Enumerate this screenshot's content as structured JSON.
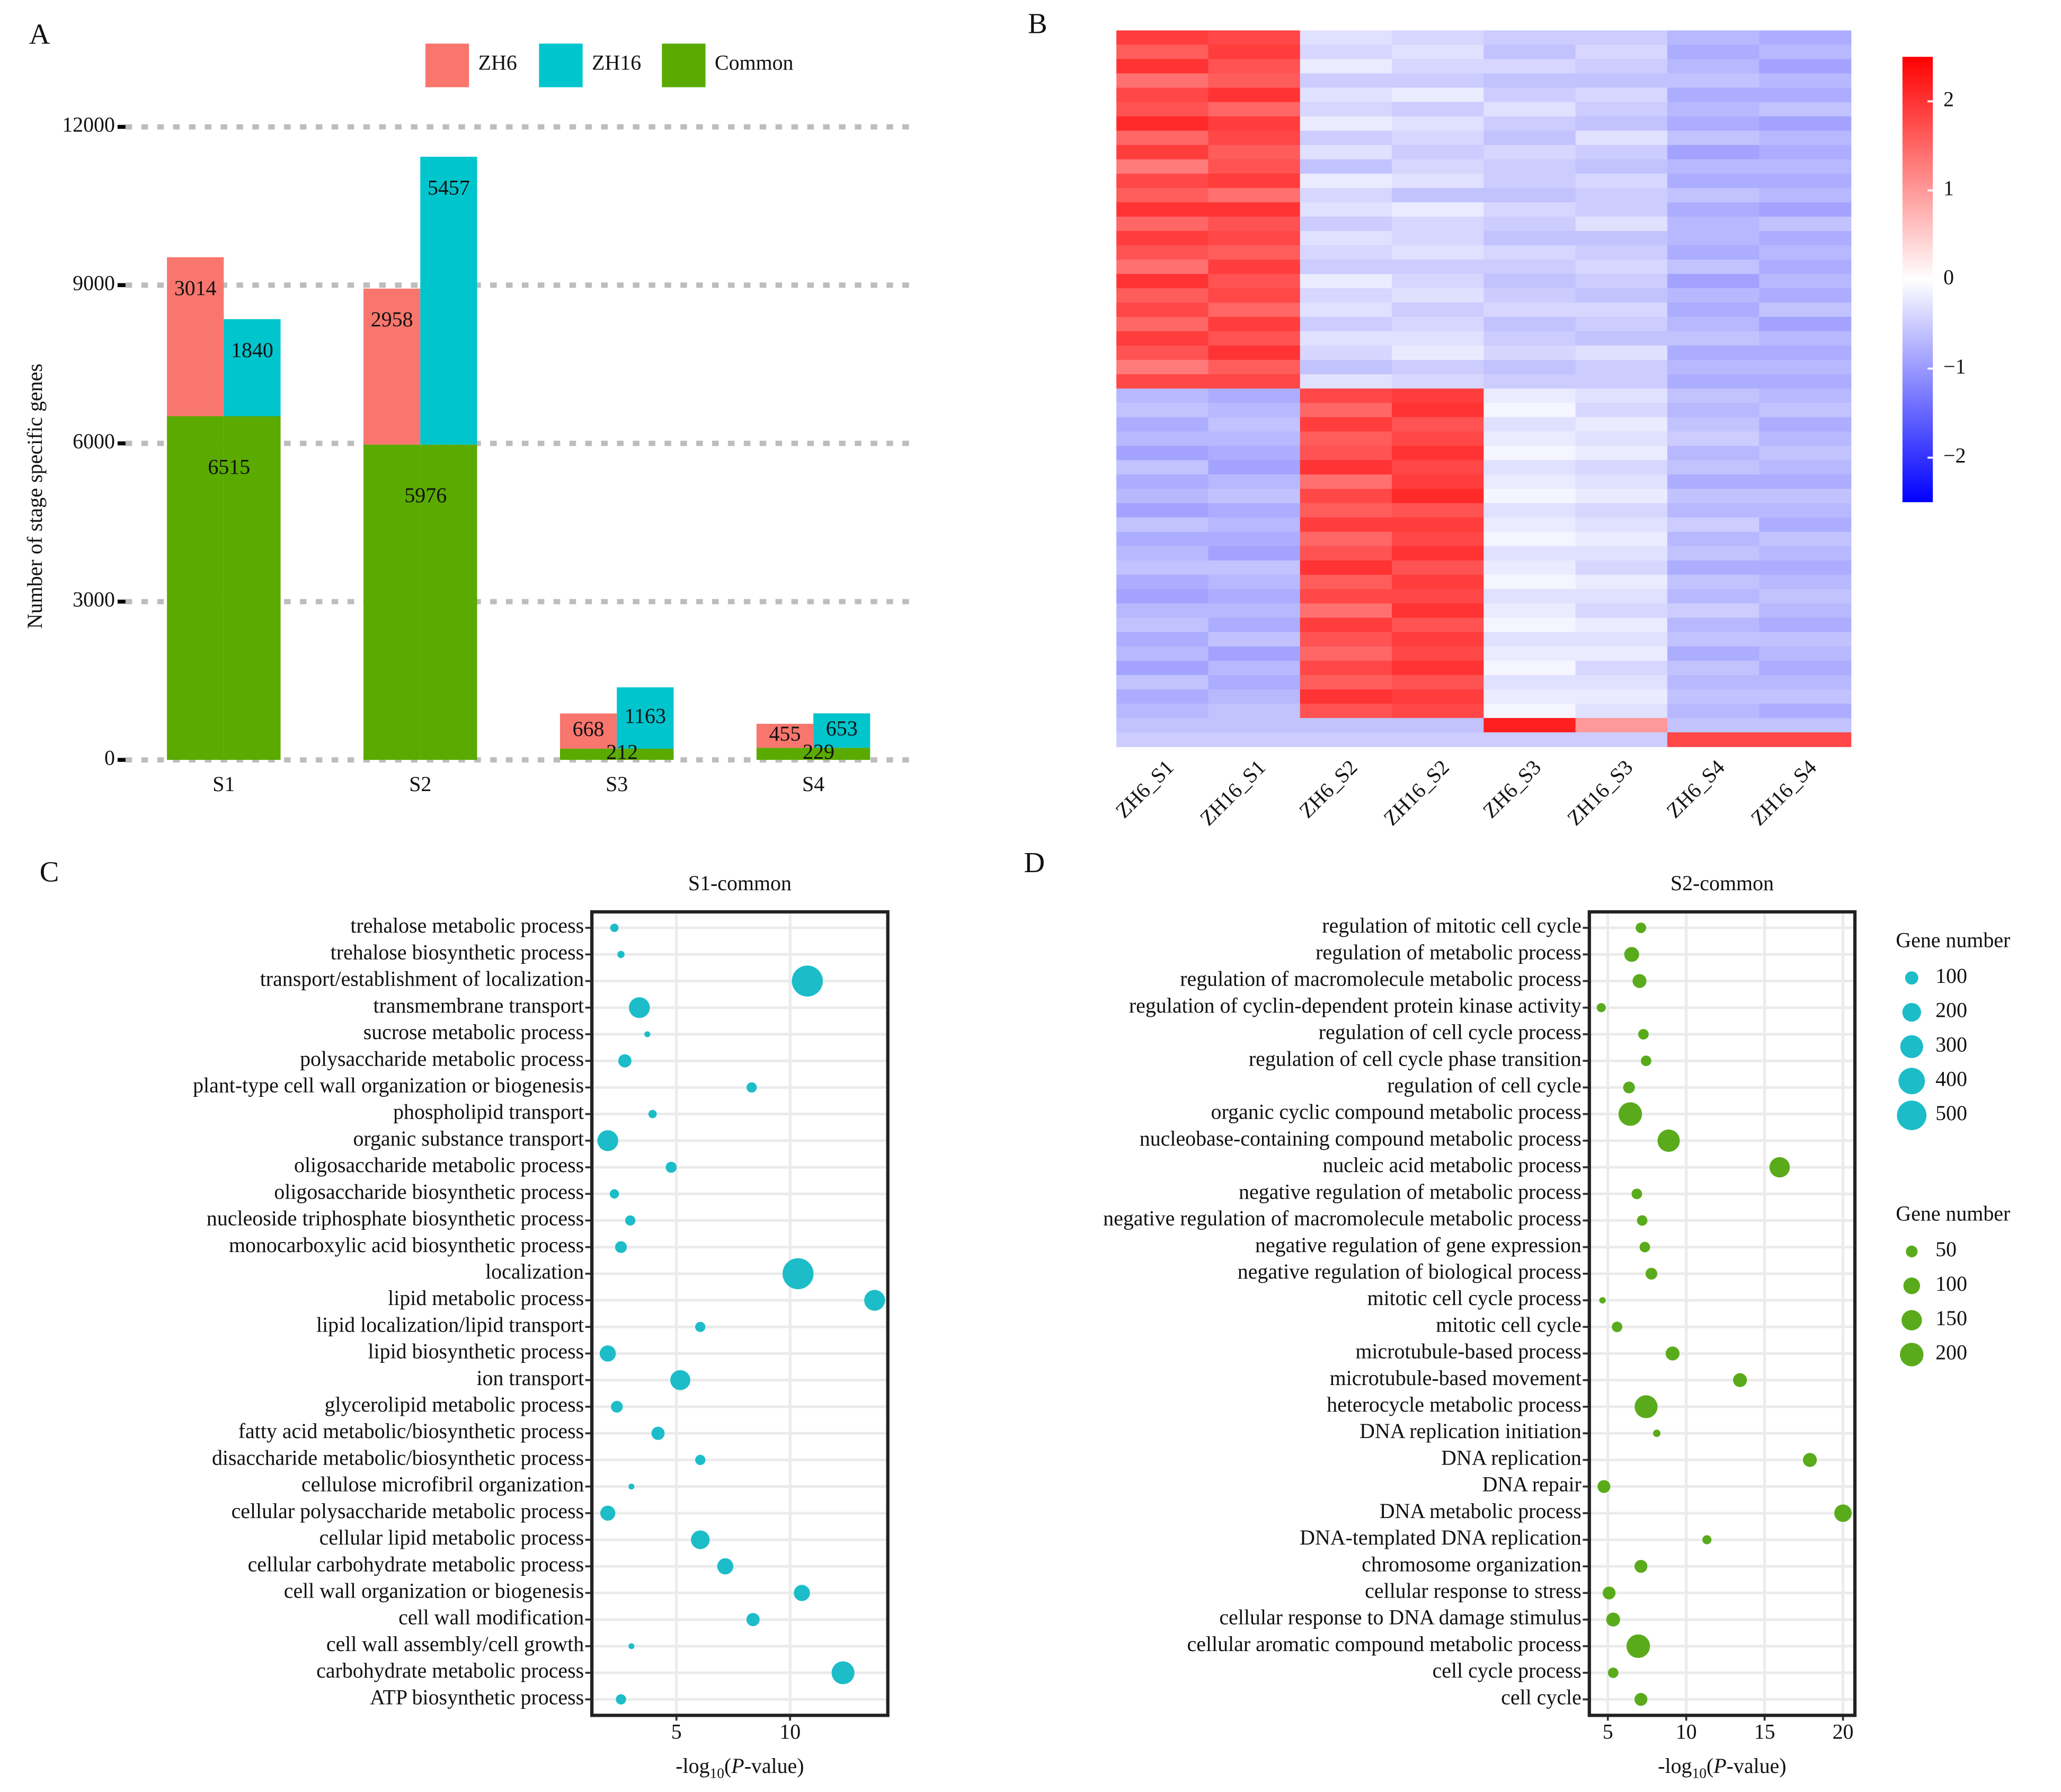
{
  "chart_data": [
    {
      "type": "bar",
      "panel": "A",
      "ylabel": "Number of stage specific genes",
      "categories": [
        "S1",
        "S2",
        "S3",
        "S4"
      ],
      "series": [
        {
          "name": "ZH6",
          "color": "#f8766d",
          "values": [
            3014,
            2958,
            668,
            455
          ]
        },
        {
          "name": "ZH16",
          "color": "#00c5cd",
          "values": [
            1840,
            5457,
            1163,
            653
          ]
        },
        {
          "name": "Common",
          "color": "#5aaa00",
          "values": [
            6515,
            5976,
            212,
            229
          ]
        }
      ],
      "ylim": [
        0,
        12000
      ],
      "yticks": [
        0,
        3000,
        6000,
        9000,
        12000
      ],
      "grid": true,
      "legend": "top"
    },
    {
      "type": "heatmap",
      "panel": "B",
      "columns": [
        "ZH6_S1",
        "ZH16_S1",
        "ZH6_S2",
        "ZH16_S2",
        "ZH6_S3",
        "ZH16_S3",
        "ZH6_S4",
        "ZH16_S4"
      ],
      "values": [
        [
          1.9,
          1.8,
          -0.3,
          -0.4,
          -0.5,
          -0.5,
          -0.7,
          -0.8
        ],
        [
          1.6,
          1.9,
          -0.4,
          -0.3,
          -0.6,
          -0.4,
          -0.8,
          -0.7
        ],
        [
          2.0,
          1.7,
          -0.2,
          -0.4,
          -0.4,
          -0.5,
          -0.7,
          -0.9
        ],
        [
          1.4,
          1.6,
          -0.5,
          -0.5,
          -0.6,
          -0.6,
          -0.6,
          -0.7
        ],
        [
          1.8,
          2.0,
          -0.3,
          -0.2,
          -0.5,
          -0.4,
          -0.8,
          -0.8
        ],
        [
          1.7,
          1.5,
          -0.4,
          -0.5,
          -0.3,
          -0.5,
          -0.7,
          -0.6
        ],
        [
          2.1,
          1.9,
          -0.2,
          -0.3,
          -0.5,
          -0.6,
          -0.8,
          -0.9
        ],
        [
          1.5,
          1.8,
          -0.5,
          -0.4,
          -0.6,
          -0.3,
          -0.6,
          -0.7
        ],
        [
          1.9,
          1.6,
          -0.3,
          -0.5,
          -0.4,
          -0.5,
          -0.9,
          -0.8
        ],
        [
          1.3,
          1.7,
          -0.6,
          -0.4,
          -0.5,
          -0.6,
          -0.7,
          -0.7
        ],
        [
          1.8,
          1.9,
          -0.2,
          -0.3,
          -0.5,
          -0.4,
          -0.8,
          -0.8
        ],
        [
          1.6,
          1.4,
          -0.4,
          -0.6,
          -0.6,
          -0.5,
          -0.6,
          -0.7
        ],
        [
          2.0,
          2.0,
          -0.3,
          -0.2,
          -0.4,
          -0.5,
          -0.8,
          -0.9
        ],
        [
          1.5,
          1.7,
          -0.5,
          -0.4,
          -0.5,
          -0.3,
          -0.7,
          -0.6
        ],
        [
          1.9,
          1.8,
          -0.3,
          -0.4,
          -0.6,
          -0.6,
          -0.7,
          -0.8
        ],
        [
          1.7,
          1.6,
          -0.4,
          -0.3,
          -0.4,
          -0.5,
          -0.8,
          -0.7
        ],
        [
          1.4,
          1.9,
          -0.5,
          -0.5,
          -0.5,
          -0.4,
          -0.6,
          -0.8
        ],
        [
          2.0,
          1.7,
          -0.2,
          -0.4,
          -0.6,
          -0.5,
          -0.9,
          -0.7
        ],
        [
          1.6,
          1.8,
          -0.4,
          -0.3,
          -0.5,
          -0.6,
          -0.7,
          -0.8
        ],
        [
          1.8,
          1.5,
          -0.3,
          -0.5,
          -0.4,
          -0.4,
          -0.8,
          -0.6
        ],
        [
          1.5,
          1.9,
          -0.5,
          -0.4,
          -0.6,
          -0.5,
          -0.7,
          -0.9
        ],
        [
          1.9,
          1.7,
          -0.3,
          -0.3,
          -0.5,
          -0.6,
          -0.6,
          -0.7
        ],
        [
          1.7,
          2.0,
          -0.4,
          -0.2,
          -0.4,
          -0.3,
          -0.8,
          -0.8
        ],
        [
          1.3,
          1.6,
          -0.6,
          -0.5,
          -0.6,
          -0.5,
          -0.7,
          -0.7
        ],
        [
          1.8,
          1.8,
          -0.3,
          -0.4,
          -0.5,
          -0.5,
          -0.8,
          -0.8
        ],
        [
          -0.7,
          -0.8,
          1.8,
          1.9,
          -0.2,
          -0.3,
          -0.6,
          -0.7
        ],
        [
          -0.6,
          -0.7,
          1.5,
          2.0,
          -0.1,
          -0.4,
          -0.7,
          -0.6
        ],
        [
          -0.8,
          -0.6,
          1.9,
          1.7,
          -0.3,
          -0.2,
          -0.6,
          -0.8
        ],
        [
          -0.7,
          -0.7,
          1.6,
          1.8,
          -0.2,
          -0.3,
          -0.5,
          -0.7
        ],
        [
          -0.9,
          -0.8,
          1.7,
          2.0,
          -0.1,
          -0.2,
          -0.7,
          -0.6
        ],
        [
          -0.6,
          -0.9,
          2.0,
          1.8,
          -0.3,
          -0.4,
          -0.6,
          -0.7
        ],
        [
          -0.8,
          -0.7,
          1.4,
          1.9,
          -0.2,
          -0.3,
          -0.8,
          -0.8
        ],
        [
          -0.7,
          -0.6,
          1.8,
          2.1,
          -0.1,
          -0.2,
          -0.6,
          -0.6
        ],
        [
          -0.9,
          -0.8,
          1.6,
          1.7,
          -0.3,
          -0.4,
          -0.7,
          -0.7
        ],
        [
          -0.6,
          -0.7,
          1.9,
          1.9,
          -0.2,
          -0.3,
          -0.5,
          -0.8
        ],
        [
          -0.8,
          -0.8,
          1.5,
          1.8,
          -0.1,
          -0.2,
          -0.7,
          -0.6
        ],
        [
          -0.7,
          -0.9,
          1.7,
          2.0,
          -0.3,
          -0.3,
          -0.6,
          -0.7
        ],
        [
          -0.6,
          -0.6,
          2.0,
          1.7,
          -0.2,
          -0.4,
          -0.8,
          -0.8
        ],
        [
          -0.8,
          -0.7,
          1.6,
          1.9,
          -0.1,
          -0.2,
          -0.6,
          -0.7
        ],
        [
          -0.9,
          -0.8,
          1.8,
          1.8,
          -0.3,
          -0.3,
          -0.7,
          -0.6
        ],
        [
          -0.7,
          -0.7,
          1.4,
          2.0,
          -0.2,
          -0.4,
          -0.5,
          -0.7
        ],
        [
          -0.6,
          -0.8,
          1.9,
          1.7,
          -0.1,
          -0.2,
          -0.7,
          -0.8
        ],
        [
          -0.8,
          -0.6,
          1.7,
          1.9,
          -0.3,
          -0.3,
          -0.6,
          -0.6
        ],
        [
          -0.7,
          -0.9,
          1.5,
          1.8,
          -0.2,
          -0.2,
          -0.8,
          -0.7
        ],
        [
          -0.9,
          -0.7,
          1.8,
          2.0,
          -0.1,
          -0.4,
          -0.6,
          -0.8
        ],
        [
          -0.6,
          -0.8,
          1.6,
          1.7,
          -0.3,
          -0.3,
          -0.7,
          -0.7
        ],
        [
          -0.8,
          -0.7,
          2.0,
          1.9,
          -0.2,
          -0.2,
          -0.6,
          -0.6
        ],
        [
          -0.7,
          -0.6,
          1.7,
          1.8,
          -0.1,
          -0.3,
          -0.7,
          -0.8
        ],
        [
          -0.6,
          -0.6,
          -0.6,
          -0.6,
          2.2,
          1.0,
          -0.6,
          -0.6
        ],
        [
          -0.5,
          -0.5,
          -0.5,
          -0.5,
          -0.5,
          -0.5,
          1.8,
          1.8
        ]
      ],
      "colors": [
        "#0000ff",
        "#ffffff",
        "#ff0000"
      ],
      "clim": [
        -2.5,
        2.5
      ],
      "cticks": [
        {
          "value": -2,
          "label": "−2"
        },
        {
          "value": -1,
          "label": "−1"
        },
        0,
        1,
        2
      ]
    },
    {
      "type": "dot",
      "panel": "C",
      "title": "S1-common",
      "color": "#1cbdc8",
      "categories": [
        "trehalose metabolic process",
        "trehalose biosynthetic process",
        "transport/establishment of localization",
        "transmembrane transport",
        "sucrose metabolic process",
        "polysaccharide metabolic process",
        "plant-type cell wall organization or biogenesis",
        "phospholipid transport",
        "organic substance transport",
        "oligosaccharide metabolic process",
        "oligosaccharide biosynthetic process",
        "nucleoside triphosphate biosynthetic process",
        "monocarboxylic acid biosynthetic process",
        "localization",
        "lipid metabolic process",
        "lipid localization/lipid transport",
        "lipid biosynthetic process",
        "ion transport",
        "glycerolipid metabolic process",
        "fatty acid metabolic/biosynthetic process",
        "disaccharide metabolic/biosynthetic process",
        "cellulose microfibril organization",
        "cellular polysaccharide metabolic process",
        "cellular lipid metabolic process",
        "cellular carbohydrate metabolic process",
        "cell wall organization or biogenesis",
        "cell wall modification",
        "cell wall assembly/cell growth",
        "carbohydrate metabolic process",
        "ATP biosynthetic process"
      ],
      "x": [
        2.27,
        2.56,
        10.76,
        3.37,
        3.72,
        2.73,
        8.31,
        3.95,
        1.98,
        4.77,
        2.27,
        2.97,
        2.56,
        10.35,
        13.72,
        6.05,
        1.98,
        5.17,
        2.38,
        4.19,
        6.05,
        3.02,
        1.98,
        6.05,
        7.15,
        10.52,
        8.37,
        3.02,
        12.33,
        2.56
      ],
      "sizes": [
        40,
        30,
        550,
        250,
        20,
        100,
        60,
        40,
        250,
        70,
        50,
        60,
        80,
        550,
        250,
        60,
        150,
        230,
        80,
        100,
        60,
        20,
        130,
        200,
        150,
        150,
        100,
        20,
        300,
        60
      ],
      "xlim": [
        1.28,
        14.3
      ],
      "xticks": [
        5,
        10
      ],
      "grid": true,
      "xlabel": [
        {
          "text": "-log"
        },
        {
          "text": "10",
          "style": "sub"
        },
        {
          "text": "("
        },
        {
          "text": "P",
          "style": "italic"
        },
        {
          "text": "-value)"
        }
      ],
      "size_legend": {
        "title": "Gene number",
        "values": [
          100,
          200,
          300,
          400,
          500
        ]
      }
    },
    {
      "type": "dot",
      "panel": "D",
      "title": "S2-common",
      "color": "#5aab1c",
      "categories": [
        "regulation of mitotic cell cycle",
        "regulation of metabolic process",
        "regulation of macromolecule metabolic process",
        "regulation of cyclin-dependent protein kinase activity",
        "regulation of cell cycle process",
        "regulation of cell cycle phase transition",
        "regulation of cell cycle",
        "organic cyclic compound metabolic process",
        "nucleobase-containing compound metabolic process",
        "nucleic acid metabolic process",
        "negative regulation of metabolic process",
        "negative regulation of macromolecule metabolic process",
        "negative regulation of gene expression",
        "negative regulation of biological process",
        "mitotic cell cycle process",
        "mitotic cell cycle",
        "microtubule-based process",
        "microtubule-based movement",
        "heterocycle metabolic process",
        "DNA replication initiation",
        "DNA replication",
        "DNA repair",
        "DNA metabolic process",
        "DNA-templated DNA replication",
        "chromosome organization",
        "cellular response to stress",
        "cellular response to DNA damage stimulus",
        "cellular aromatic compound metabolic process",
        "cell cycle process",
        "cell cycle"
      ],
      "x": [
        7.11,
        6.52,
        7.02,
        4.58,
        7.27,
        7.44,
        6.35,
        6.43,
        8.88,
        15.96,
        6.85,
        7.19,
        7.36,
        7.78,
        4.66,
        5.59,
        9.13,
        13.43,
        7.44,
        8.12,
        17.89,
        4.75,
        20.0,
        11.32,
        7.11,
        5.08,
        5.34,
        6.94,
        5.34,
        7.11
      ],
      "sizes": [
        40,
        80,
        70,
        30,
        40,
        40,
        50,
        200,
        180,
        150,
        40,
        40,
        40,
        50,
        15,
        40,
        70,
        70,
        190,
        20,
        70,
        60,
        110,
        30,
        60,
        60,
        70,
        200,
        40,
        60
      ],
      "xlim": [
        3.82,
        20.76
      ],
      "xticks": [
        5,
        10,
        15,
        20
      ],
      "grid": true,
      "xlabel": [
        {
          "text": "-log"
        },
        {
          "text": "10",
          "style": "sub"
        },
        {
          "text": "("
        },
        {
          "text": "P",
          "style": "italic"
        },
        {
          "text": "-value)"
        }
      ],
      "size_legend": {
        "title": "Gene number",
        "values": [
          50,
          100,
          150,
          200
        ]
      }
    }
  ]
}
